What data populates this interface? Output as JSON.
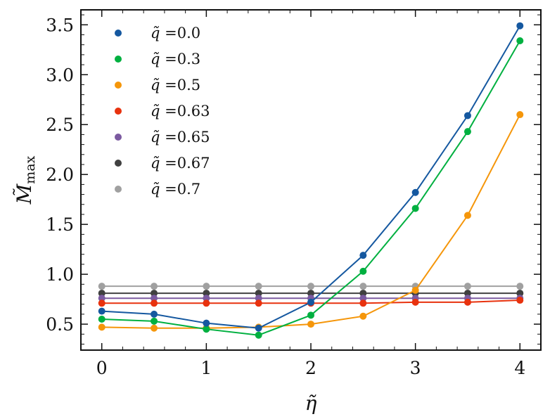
{
  "chart_data": {
    "type": "line",
    "title": "",
    "xlabel": "η̃",
    "ylabel": "M̃",
    "ylabel_subscript": "max",
    "xlim": [
      -0.2,
      4.2
    ],
    "ylim": [
      0.24,
      3.65
    ],
    "xticks": [
      0,
      1,
      2,
      3,
      4
    ],
    "xtick_labels": [
      "0",
      "1",
      "2",
      "3",
      "4"
    ],
    "yticks": [
      0.5,
      1.0,
      1.5,
      2.0,
      2.5,
      3.0,
      3.5
    ],
    "ytick_labels": [
      "0.5",
      "1.0",
      "1.5",
      "2.0",
      "2.5",
      "3.0",
      "3.5"
    ],
    "legend_position": "upper-left",
    "legend_symbol": "q̃",
    "x": [
      0,
      0.5,
      1,
      1.5,
      2,
      2.5,
      3,
      3.5,
      4
    ],
    "series": [
      {
        "name": "q̃ =0.0",
        "label_value": "=0.0",
        "color": "#1558a0",
        "values": [
          0.63,
          0.6,
          0.51,
          0.46,
          0.72,
          1.19,
          1.82,
          2.59,
          3.49
        ]
      },
      {
        "name": "q̃ =0.3",
        "label_value": "=0.3",
        "color": "#00b040",
        "values": [
          0.55,
          0.53,
          0.45,
          0.39,
          0.59,
          1.03,
          1.66,
          2.43,
          3.34
        ]
      },
      {
        "name": "q̃ =0.5",
        "label_value": "=0.5",
        "color": "#f5960a",
        "values": [
          0.47,
          0.46,
          0.46,
          0.47,
          0.5,
          0.58,
          0.84,
          1.59,
          2.6
        ]
      },
      {
        "name": "q̃ =0.63",
        "label_value": "=0.63",
        "color": "#e8320e",
        "values": [
          0.71,
          0.71,
          0.71,
          0.71,
          0.71,
          0.71,
          0.72,
          0.72,
          0.74
        ]
      },
      {
        "name": "q̃ =0.65",
        "label_value": "=0.65",
        "color": "#7b5aa0",
        "values": [
          0.76,
          0.76,
          0.76,
          0.76,
          0.76,
          0.76,
          0.76,
          0.76,
          0.76
        ]
      },
      {
        "name": "q̃ =0.67",
        "label_value": "=0.67",
        "color": "#404040",
        "values": [
          0.81,
          0.81,
          0.81,
          0.81,
          0.81,
          0.81,
          0.81,
          0.81,
          0.81
        ]
      },
      {
        "name": "q̃ =0.7",
        "label_value": "=0.7",
        "color": "#a0a0a0",
        "values": [
          0.88,
          0.88,
          0.88,
          0.88,
          0.88,
          0.88,
          0.88,
          0.88,
          0.88
        ]
      }
    ]
  }
}
